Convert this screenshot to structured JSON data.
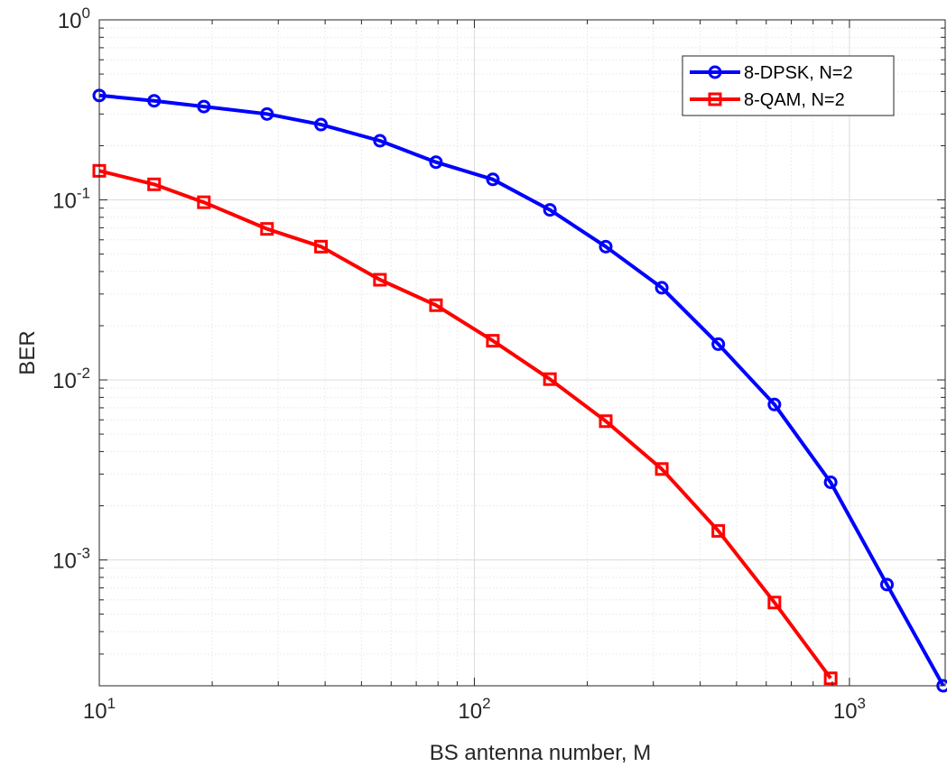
{
  "chart_data": {
    "type": "line",
    "title": "",
    "xlabel": "BS antenna number, M",
    "ylabel": "BER",
    "x_scale": "log",
    "y_scale": "log",
    "xlim": [
      10,
      1800
    ],
    "ylim": [
      0.0002,
      1
    ],
    "grid": true,
    "minor_grid": true,
    "legend_position": "top-right",
    "x_ticks": [
      {
        "value": 10,
        "base": "10",
        "exp": "1"
      },
      {
        "value": 100,
        "base": "10",
        "exp": "2"
      },
      {
        "value": 1000,
        "base": "10",
        "exp": "3"
      }
    ],
    "y_ticks": [
      {
        "value": 1,
        "base": "10",
        "exp": "0"
      },
      {
        "value": 0.1,
        "base": "10",
        "exp": "-1"
      },
      {
        "value": 0.01,
        "base": "10",
        "exp": "-2"
      },
      {
        "value": 0.001,
        "base": "10",
        "exp": "-3"
      }
    ],
    "series": [
      {
        "name": "8-DPSK, N=2",
        "color": "#0000ff",
        "marker": "circle",
        "x": [
          10,
          14,
          19,
          28,
          39,
          56,
          79,
          112,
          159,
          224,
          316,
          447,
          631,
          891,
          1259,
          1778
        ],
        "y": [
          0.38,
          0.355,
          0.33,
          0.3,
          0.262,
          0.213,
          0.162,
          0.13,
          0.088,
          0.055,
          0.0325,
          0.0158,
          0.0073,
          0.0027,
          0.00073,
          0.0002
        ]
      },
      {
        "name": "8-QAM, N=2",
        "color": "#ff0000",
        "marker": "square",
        "x": [
          10,
          14,
          19,
          28,
          39,
          56,
          79,
          112,
          159,
          224,
          316,
          447,
          631,
          891
        ],
        "y": [
          0.145,
          0.122,
          0.097,
          0.069,
          0.055,
          0.036,
          0.026,
          0.0165,
          0.0101,
          0.0059,
          0.0032,
          0.00145,
          0.00058,
          0.00022
        ]
      }
    ]
  }
}
